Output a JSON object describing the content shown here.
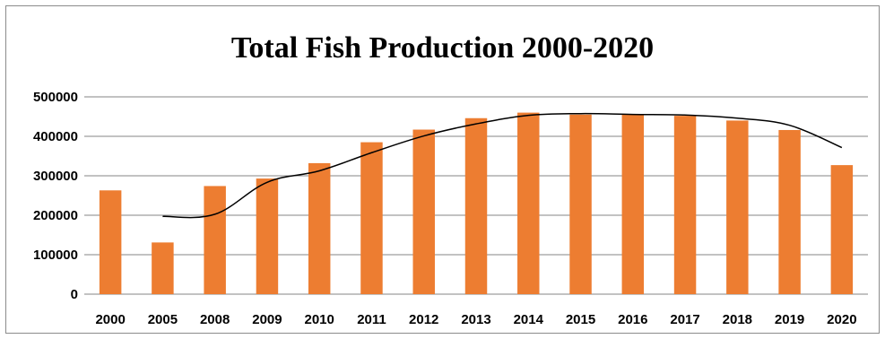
{
  "chart_data": {
    "type": "bar",
    "title": "Total Fish Production 2000-2020",
    "xlabel": "",
    "ylabel": "",
    "categories": [
      "2000",
      "2005",
      "2008",
      "2009",
      "2010",
      "2011",
      "2012",
      "2013",
      "2014",
      "2015",
      "2016",
      "2017",
      "2018",
      "2019",
      "2020"
    ],
    "series": [
      {
        "values": [
          263000,
          131000,
          274000,
          293000,
          332000,
          385000,
          417000,
          446000,
          460000,
          455000,
          456000,
          452000,
          440000,
          416000,
          327000
        ],
        "color": "#ed7d31"
      }
    ],
    "trendline": {
      "type": "moving-average",
      "period": 2,
      "color": "#000000"
    },
    "ylim": [
      0,
      500000
    ],
    "yticks": [
      "0",
      "100000",
      "200000",
      "300000",
      "400000",
      "500000"
    ],
    "grid": "horizontal",
    "legend": "none"
  }
}
